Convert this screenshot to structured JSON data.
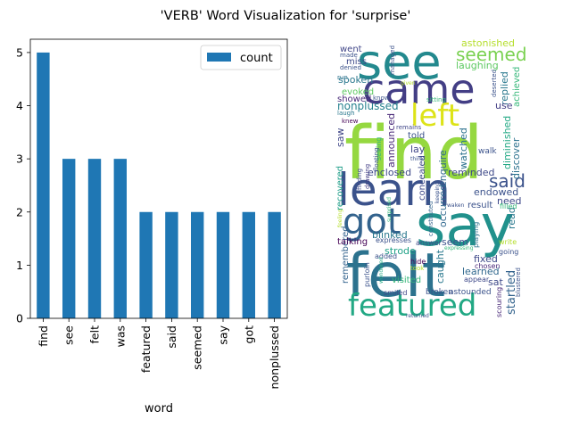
{
  "chart_data": [
    {
      "type": "bar",
      "title": "'VERB' Word Visualization for 'surprise'",
      "xlabel": "word",
      "ylabel": "",
      "categories": [
        "find",
        "see",
        "felt",
        "was",
        "featured",
        "said",
        "seemed",
        "say",
        "got",
        "nonplussed"
      ],
      "series": [
        {
          "name": "count",
          "values": [
            5,
            3,
            3,
            3,
            2,
            2,
            2,
            2,
            2,
            2
          ],
          "color": "#1f77b4"
        }
      ],
      "ylim": [
        0,
        5.25
      ],
      "yticks": [
        0,
        1,
        2,
        3,
        4,
        5
      ],
      "grid": false,
      "legend": "top-right"
    },
    {
      "type": "wordcloud",
      "words": [
        {
          "text": "see",
          "color": "#23898e"
        },
        {
          "text": "came",
          "color": "#433e85"
        },
        {
          "text": "find",
          "color": "#95d840"
        },
        {
          "text": "left",
          "color": "#dde318"
        },
        {
          "text": "learn",
          "color": "#3b528b"
        },
        {
          "text": "say",
          "color": "#21918c"
        },
        {
          "text": "got",
          "color": "#33638d"
        },
        {
          "text": "felt",
          "color": "#2c728e"
        },
        {
          "text": "featured",
          "color": "#22a884"
        },
        {
          "text": "seemed",
          "color": "#7ad151"
        },
        {
          "text": "said",
          "color": "#3b528b"
        },
        {
          "text": "astonished",
          "color": "#b5de2b"
        },
        {
          "text": "laughing",
          "color": "#5ec962"
        },
        {
          "text": "went",
          "color": "#404688"
        },
        {
          "text": "miss",
          "color": "#3e4989"
        },
        {
          "text": "spoken",
          "color": "#2a788e"
        },
        {
          "text": "evoked",
          "color": "#5ec962"
        },
        {
          "text": "showed",
          "color": "#482878"
        },
        {
          "text": "nonplussed",
          "color": "#26828e"
        },
        {
          "text": "announced",
          "color": "#482878"
        },
        {
          "text": "told",
          "color": "#3b528b"
        },
        {
          "text": "lay",
          "color": "#404688"
        },
        {
          "text": "enclosed",
          "color": "#3e4989"
        },
        {
          "text": "blinked",
          "color": "#2a788e"
        },
        {
          "text": "strode",
          "color": "#1fa187"
        },
        {
          "text": "visited",
          "color": "#35b779"
        },
        {
          "text": "remembered",
          "color": "#33638d"
        },
        {
          "text": "recovered",
          "color": "#1f9e89"
        },
        {
          "text": "saw",
          "color": "#404688"
        },
        {
          "text": "talking",
          "color": "#440154"
        },
        {
          "text": "answer",
          "color": "#3e4989"
        },
        {
          "text": "expresses",
          "color": "#3b528b"
        },
        {
          "text": "seem",
          "color": "#3b528b"
        },
        {
          "text": "caught",
          "color": "#2a788e"
        },
        {
          "text": "enquire",
          "color": "#31688e"
        },
        {
          "text": "watched",
          "color": "#2c728e"
        },
        {
          "text": "occurred",
          "color": "#31688e"
        },
        {
          "text": "concealed",
          "color": "#3e4989"
        },
        {
          "text": "endowed",
          "color": "#3b528b"
        },
        {
          "text": "reminded",
          "color": "#3e4989"
        },
        {
          "text": "need",
          "color": "#3e4989"
        },
        {
          "text": "result",
          "color": "#3b528b"
        },
        {
          "text": "fixed",
          "color": "#3e4989"
        },
        {
          "text": "learned",
          "color": "#31688e"
        },
        {
          "text": "sat",
          "color": "#3e4989"
        },
        {
          "text": "startled",
          "color": "#33638d"
        },
        {
          "text": "read",
          "color": "#2a788e"
        },
        {
          "text": "discover",
          "color": "#2c728e"
        },
        {
          "text": "diminished",
          "color": "#22a884"
        },
        {
          "text": "replied",
          "color": "#2a788e"
        },
        {
          "text": "achieved",
          "color": "#35b779"
        },
        {
          "text": "use",
          "color": "#433e85"
        },
        {
          "text": "walk",
          "color": "#3b528b"
        },
        {
          "text": "broken",
          "color": "#3b528b"
        },
        {
          "text": "astounded",
          "color": "#3b528b"
        },
        {
          "text": "hide",
          "color": "#440154"
        },
        {
          "text": "chosen",
          "color": "#482878"
        },
        {
          "text": "appear",
          "color": "#3e4989"
        },
        {
          "text": "scouring",
          "color": "#482878"
        },
        {
          "text": "blustered",
          "color": "#3b528b"
        },
        {
          "text": "smiled",
          "color": "#404688"
        },
        {
          "text": "purloin",
          "color": "#3b528b"
        },
        {
          "text": "added",
          "color": "#3b528b"
        },
        {
          "text": "write",
          "color": "#b5de2b"
        },
        {
          "text": "going",
          "color": "#3b528b"
        },
        {
          "text": "playing",
          "color": "#2c728e"
        },
        {
          "text": "filled",
          "color": "#35b779"
        },
        {
          "text": "made",
          "color": "#3b528b"
        },
        {
          "text": "denied",
          "color": "#3b528b"
        },
        {
          "text": "run",
          "color": "#2c728e"
        },
        {
          "text": "laugh",
          "color": "#2a788e"
        },
        {
          "text": "knew",
          "color": "#440154"
        },
        {
          "text": "managed",
          "color": "#3b528b"
        },
        {
          "text": "remains",
          "color": "#404688"
        },
        {
          "text": "seeing",
          "color": "#35b779"
        },
        {
          "text": "drawing",
          "color": "#433e85"
        },
        {
          "text": "finding",
          "color": "#3e4989"
        },
        {
          "text": "floating",
          "color": "#3b528b"
        },
        {
          "text": "know",
          "color": "#3b528b"
        },
        {
          "text": "deserted",
          "color": "#3b528b"
        },
        {
          "text": "sitting",
          "color": "#35b779"
        },
        {
          "text": "returned",
          "color": "#3b528b"
        },
        {
          "text": "took",
          "color": "#b5de2b"
        },
        {
          "text": "waken",
          "color": "#3b528b"
        },
        {
          "text": "feeling",
          "color": "#b5de2b"
        },
        {
          "text": "constituted",
          "color": "#33638d"
        },
        {
          "text": "wondered",
          "color": "#22a884"
        },
        {
          "text": "keeping",
          "color": "#3b528b"
        },
        {
          "text": "surprised",
          "color": "#35b779"
        },
        {
          "text": "expressing",
          "color": "#35b779"
        },
        {
          "text": "given",
          "color": "#b5de2b"
        },
        {
          "text": "think",
          "color": "#3b528b"
        }
      ]
    }
  ],
  "legend": {
    "label": "count"
  }
}
